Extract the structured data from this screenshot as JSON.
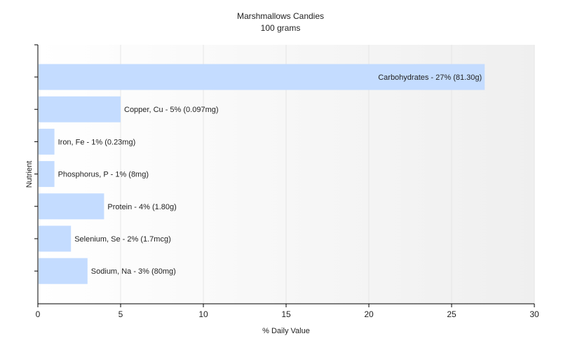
{
  "chart_data": {
    "type": "bar",
    "orientation": "horizontal",
    "title": "Marshmallows Candies",
    "subtitle": "100 grams",
    "xlabel": "% Daily Value",
    "ylabel": "Nutrient",
    "xlim": [
      0,
      30
    ],
    "xticks": [
      0,
      5,
      10,
      15,
      20,
      25,
      30
    ],
    "grid": true,
    "colors": {
      "bar": "#c4dcff",
      "axis": "#000000",
      "grid": "#e6e6e6"
    },
    "categories": [
      "Carbohydrates",
      "Copper, Cu",
      "Iron, Fe",
      "Phosphorus, P",
      "Protein",
      "Selenium, Se",
      "Sodium, Na"
    ],
    "values": [
      27,
      5,
      1,
      1,
      4,
      2,
      3
    ],
    "labels": [
      "Carbohydrates - 27% (81.30g)",
      "Copper, Cu - 5% (0.097mg)",
      "Iron, Fe - 1% (0.23mg)",
      "Phosphorus, P - 1% (8mg)",
      "Protein - 4% (1.80g)",
      "Selenium, Se - 2% (1.7mcg)",
      "Sodium, Na - 3% (80mg)"
    ]
  }
}
